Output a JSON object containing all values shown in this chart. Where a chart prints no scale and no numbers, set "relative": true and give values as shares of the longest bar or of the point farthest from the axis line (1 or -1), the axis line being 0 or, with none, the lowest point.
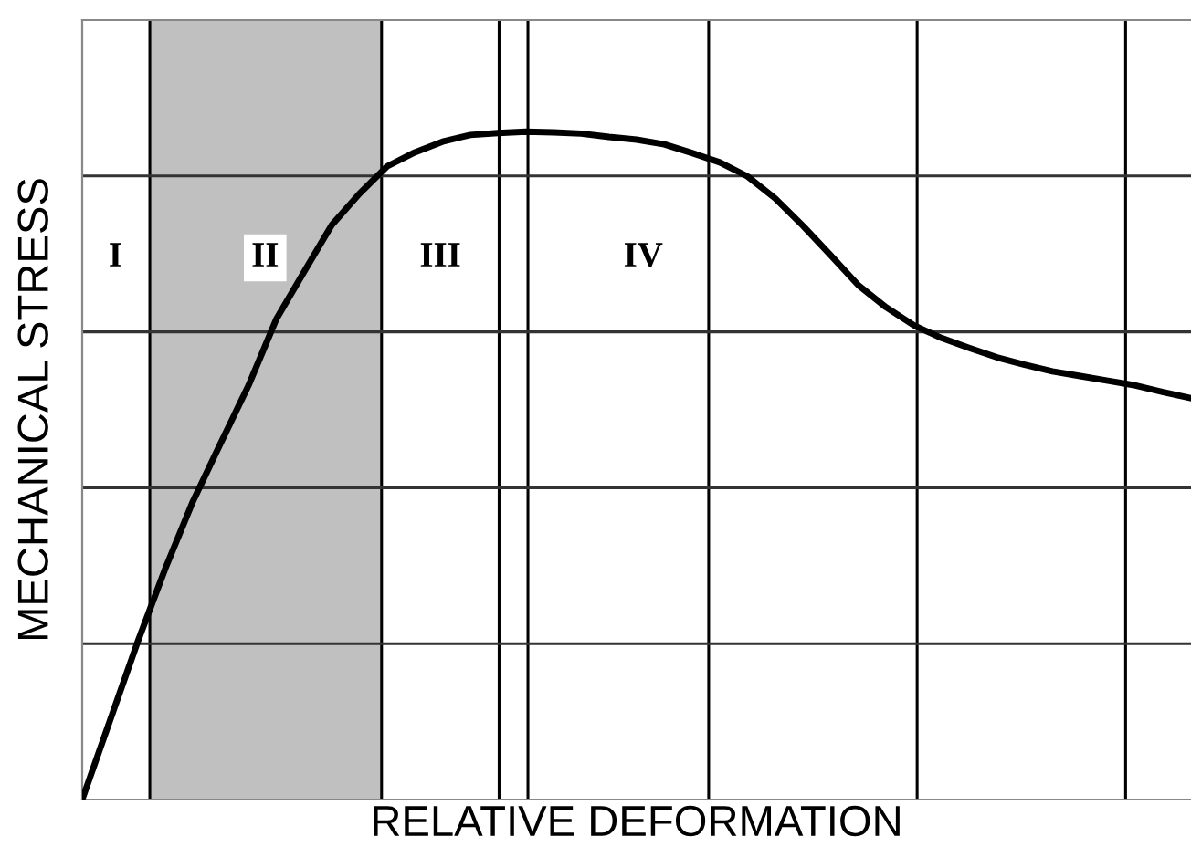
{
  "chart_data": {
    "type": "line",
    "relative": true,
    "xlabel": "RELATIVE DEFORMATION",
    "ylabel": "MECHANICAL STRESS",
    "tick_labels": false,
    "marker": "none",
    "line_style": "solid",
    "grid": true,
    "categories": [
      null,
      null,
      null,
      null,
      null,
      null,
      null,
      null,
      null,
      null,
      null,
      null,
      null,
      null,
      null,
      null,
      null,
      null,
      null,
      null,
      null,
      null,
      null,
      null,
      null,
      null,
      null,
      null,
      null,
      null,
      null,
      null,
      null,
      null,
      null,
      null,
      null,
      null,
      null,
      null,
      null
    ],
    "series": [
      {
        "color": "#000000",
        "values": [
          0,
          0.118,
          0.236,
          0.346,
          0.447,
          0.534,
          0.62,
          0.719,
          0.79,
          0.86,
          0.907,
          0.948,
          0.969,
          0.985,
          0.995,
          0.998,
          1.0,
          0.999,
          0.997,
          0.992,
          0.988,
          0.981,
          0.968,
          0.954,
          0.933,
          0.9,
          0.859,
          0.815,
          0.77,
          0.737,
          0.71,
          0.691,
          0.676,
          0.662,
          0.651,
          0.641,
          0.634,
          0.627,
          0.62,
          0.61,
          0.601
        ]
      }
    ],
    "annotations": [
      "I",
      "II",
      "III",
      "IV"
    ]
  }
}
